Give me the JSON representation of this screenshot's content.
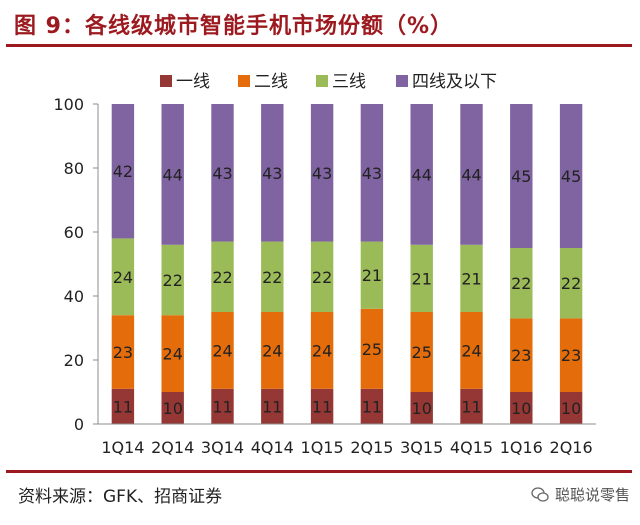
{
  "header": {
    "title": "图 9：各线级城市智能手机市场份额（%）"
  },
  "footer": {
    "source": "资料来源：GFK、招商证券",
    "watermark": "聪聪说零售"
  },
  "chart_data": {
    "type": "bar",
    "stacked": true,
    "title": "图 9：各线级城市智能手机市场份额（%）",
    "categories": [
      "1Q14",
      "2Q14",
      "3Q14",
      "4Q14",
      "1Q15",
      "2Q15",
      "3Q15",
      "4Q15",
      "1Q16",
      "2Q16"
    ],
    "series": [
      {
        "name": "一线",
        "color": "#953735",
        "values": [
          11,
          10,
          11,
          11,
          11,
          11,
          10,
          11,
          10,
          10
        ]
      },
      {
        "name": "二线",
        "color": "#e46c0a",
        "values": [
          23,
          24,
          24,
          24,
          24,
          25,
          25,
          24,
          23,
          23
        ]
      },
      {
        "name": "三线",
        "color": "#9bbb59",
        "values": [
          24,
          22,
          22,
          22,
          22,
          21,
          21,
          21,
          22,
          22
        ]
      },
      {
        "name": "四线及以下",
        "color": "#8064a2",
        "values": [
          42,
          44,
          43,
          43,
          43,
          43,
          44,
          44,
          45,
          45
        ]
      }
    ],
    "yticks": [
      0,
      20,
      40,
      60,
      80,
      100
    ],
    "ylim": [
      0,
      100
    ],
    "legend_position": "top",
    "grid": false
  }
}
